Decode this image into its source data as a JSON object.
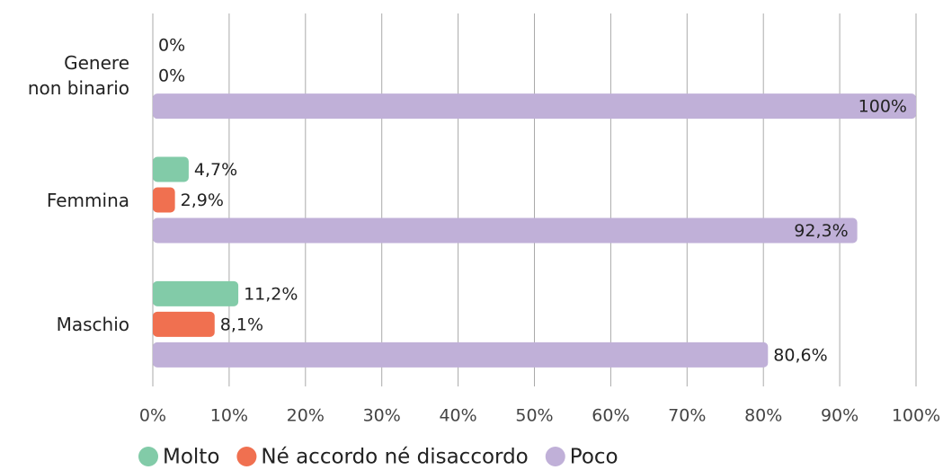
{
  "chart_data": {
    "type": "hbar",
    "categories": [
      "Genere\nnon binario",
      "Femmina",
      "Maschio"
    ],
    "series": [
      {
        "name": "Molto",
        "color": "#82cba8",
        "values": [
          0,
          4.7,
          11.2
        ],
        "value_labels": [
          "0%",
          "4,7%",
          "11,2%"
        ]
      },
      {
        "name": "Né accordo né disaccordo",
        "color": "#f07050",
        "values": [
          0,
          2.9,
          8.1
        ],
        "value_labels": [
          "0%",
          "2,9%",
          "8,1%"
        ]
      },
      {
        "name": "Poco",
        "color": "#c0b0d8",
        "values": [
          100,
          92.3,
          80.6
        ],
        "value_labels": [
          "100%",
          "92,3%",
          "80,6%"
        ]
      }
    ],
    "xlim": [
      0,
      100
    ],
    "xticks": [
      {
        "value": 0,
        "label": "0%"
      },
      {
        "value": 10,
        "label": "10%"
      },
      {
        "value": 20,
        "label": "20%"
      },
      {
        "value": 30,
        "label": "30%"
      },
      {
        "value": 40,
        "label": "40%"
      },
      {
        "value": 50,
        "label": "50%"
      },
      {
        "value": 60,
        "label": "60%"
      },
      {
        "value": 70,
        "label": "70%"
      },
      {
        "value": 80,
        "label": "80%"
      },
      {
        "value": 90,
        "label": "90%"
      },
      {
        "value": 100,
        "label": "100%"
      }
    ],
    "grid": true,
    "legend": "bottom"
  }
}
